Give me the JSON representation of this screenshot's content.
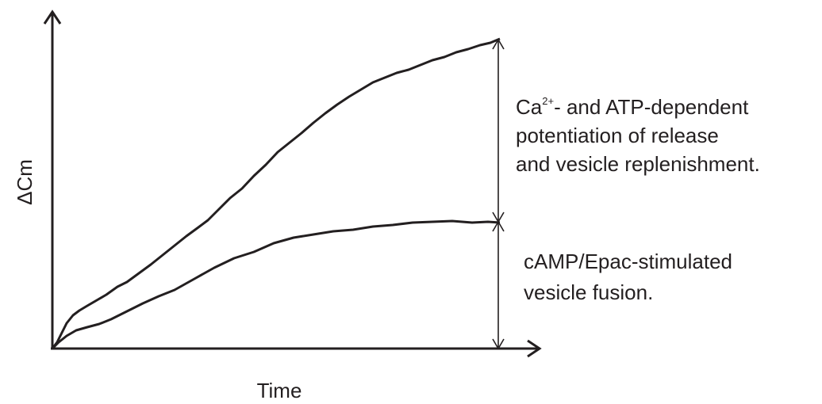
{
  "diagram": {
    "y_axis_label": "ΔCm",
    "x_axis_label": "Time",
    "upper_annotation": {
      "line1": {
        "text": "Ca",
        "superscript": "2+",
        "rest": "- and ATP-dependent"
      },
      "line2": "potentiation of release",
      "line3": "and vesicle replenishment."
    },
    "lower_annotation": {
      "line1": "cAMP/Epac-stimulated",
      "line2": "vesicle fusion."
    }
  }
}
